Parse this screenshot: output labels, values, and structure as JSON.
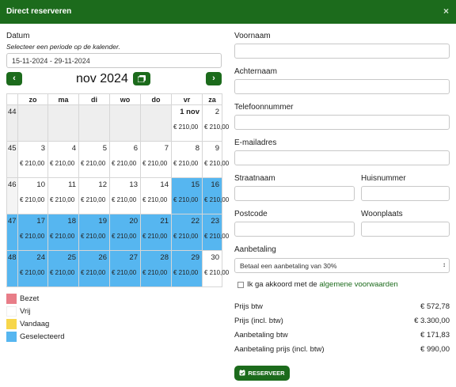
{
  "dialog": {
    "title": "Direct reserveren",
    "close": "×"
  },
  "datum": {
    "label": "Datum",
    "hint": "Selecteer een periode op de kalender.",
    "value": "15-11-2024 - 29-11-2024"
  },
  "calendar": {
    "month": "nov 2024",
    "prev": "‹",
    "next": "›",
    "headers": [
      "",
      "zo",
      "ma",
      "di",
      "wo",
      "do",
      "vr",
      "za"
    ],
    "rows": [
      {
        "week": "44",
        "cells": [
          {
            "day": "",
            "price": ""
          },
          {
            "day": "",
            "price": ""
          },
          {
            "day": "",
            "price": ""
          },
          {
            "day": "",
            "price": ""
          },
          {
            "day": "",
            "price": ""
          },
          {
            "day": "1 nov",
            "price": "€ 210,00"
          },
          {
            "day": "2",
            "price": "€ 210,00"
          }
        ]
      },
      {
        "week": "45",
        "cells": [
          {
            "day": "3",
            "price": "€ 210,00"
          },
          {
            "day": "4",
            "price": "€ 210,00"
          },
          {
            "day": "5",
            "price": "€ 210,00"
          },
          {
            "day": "6",
            "price": "€ 210,00"
          },
          {
            "day": "7",
            "price": "€ 210,00"
          },
          {
            "day": "8",
            "price": "€ 210,00"
          },
          {
            "day": "9",
            "price": "€ 210,00"
          }
        ]
      },
      {
        "week": "46",
        "cells": [
          {
            "day": "10",
            "price": "€ 210,00"
          },
          {
            "day": "11",
            "price": "€ 210,00"
          },
          {
            "day": "12",
            "price": "€ 210,00"
          },
          {
            "day": "13",
            "price": "€ 210,00"
          },
          {
            "day": "14",
            "price": "€ 210,00"
          },
          {
            "day": "15",
            "price": "€ 210,00"
          },
          {
            "day": "16",
            "price": "€ 210,00"
          }
        ]
      },
      {
        "week": "47",
        "cells": [
          {
            "day": "17",
            "price": "€ 210,00"
          },
          {
            "day": "18",
            "price": "€ 210,00"
          },
          {
            "day": "19",
            "price": "€ 210,00"
          },
          {
            "day": "20",
            "price": "€ 210,00"
          },
          {
            "day": "21",
            "price": "€ 210,00"
          },
          {
            "day": "22",
            "price": "€ 210,00"
          },
          {
            "day": "23",
            "price": "€ 210,00"
          }
        ]
      },
      {
        "week": "48",
        "cells": [
          {
            "day": "24",
            "price": "€ 210,00"
          },
          {
            "day": "25",
            "price": "€ 210,00"
          },
          {
            "day": "26",
            "price": "€ 210,00"
          },
          {
            "day": "27",
            "price": "€ 210,00"
          },
          {
            "day": "28",
            "price": "€ 210,00"
          },
          {
            "day": "29",
            "price": "€ 210,00"
          },
          {
            "day": "30",
            "price": "€ 210,00"
          }
        ]
      }
    ]
  },
  "legend": [
    {
      "label": "Bezet",
      "color": "#e87d88"
    },
    {
      "label": "Vrij",
      "color": "#ffffff"
    },
    {
      "label": "Vandaag",
      "color": "#f7d64a"
    },
    {
      "label": "Geselecteerd",
      "color": "#56b6f0"
    }
  ],
  "form": {
    "voornaam": "Voornaam",
    "achternaam": "Achternaam",
    "telefoon": "Telefoonnummer",
    "email": "E-mailadres",
    "straat": "Straatnaam",
    "huisnummer": "Huisnummer",
    "postcode": "Postcode",
    "woonplaats": "Woonplaats",
    "aanbetaling_label": "Aanbetaling",
    "aanbetaling_value": "Betaal een aanbetaling van 30%",
    "agree_text": "Ik ga akkoord met de ",
    "agree_link": "algemene voorwaarden"
  },
  "prices": [
    {
      "label": "Prijs btw",
      "value": "€ 572,78"
    },
    {
      "label": "Prijs (incl. btw)",
      "value": "€ 3.300,00"
    },
    {
      "label": "Aanbetaling btw",
      "value": "€ 171,83"
    },
    {
      "label": "Aanbetaling prijs (incl. btw)",
      "value": "€ 990,00"
    }
  ],
  "reserve_label": "RESERVEER",
  "colors": {
    "brand": "#1c6b1c",
    "selected": "#56b6f0"
  }
}
